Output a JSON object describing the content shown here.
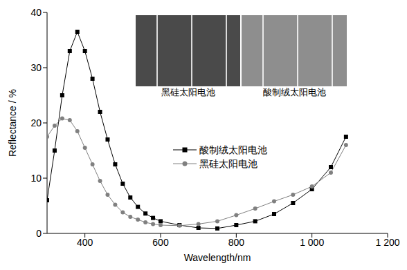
{
  "chart_data": {
    "type": "line",
    "x_label": "Wavelength/nm",
    "y_label": "Reflectance / %",
    "x": [
      300,
      320,
      340,
      360,
      380,
      400,
      420,
      440,
      460,
      480,
      500,
      520,
      540,
      560,
      580,
      600,
      650,
      700,
      750,
      800,
      850,
      900,
      950,
      1000,
      1050,
      1090
    ],
    "series": [
      {
        "name": "酸制绒太阳电池",
        "color": "#000000",
        "marker": "square",
        "values": [
          6,
          15,
          25,
          33,
          36.5,
          33,
          28,
          22,
          17,
          12.5,
          9,
          6.5,
          4.8,
          3.6,
          2.8,
          2.2,
          1.5,
          1.0,
          0.9,
          1.5,
          2.2,
          3.5,
          5.5,
          8,
          12,
          17.5
        ]
      },
      {
        "name": "黑硅太阳电池",
        "color": "#808080",
        "marker": "circle",
        "values": [
          17.5,
          19.5,
          20.8,
          20.5,
          18.5,
          15.5,
          12.5,
          9.5,
          7,
          5.2,
          3.8,
          3,
          2.5,
          2,
          1.7,
          1.5,
          1.4,
          1.7,
          2.2,
          3.3,
          4.5,
          5.8,
          7,
          8.5,
          11,
          16
        ]
      }
    ],
    "xlim": [
      300,
      1200
    ],
    "xticks": [
      400,
      600,
      800,
      {
        "value": 1000,
        "label": "1 000"
      },
      {
        "value": 1200,
        "label": "1 200"
      }
    ],
    "ylim": [
      0,
      40
    ],
    "yticks": [
      0,
      10,
      20,
      30,
      40
    ],
    "grid": false,
    "legend": "center",
    "annotations": [
      "黑硅太阳电池",
      "酸制绒太阳电池"
    ]
  }
}
